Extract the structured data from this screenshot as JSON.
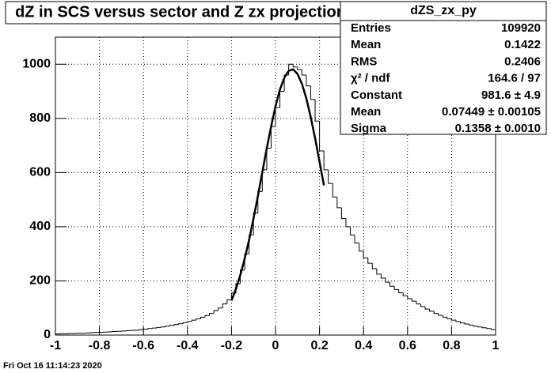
{
  "chart_data": {
    "type": "histogram",
    "title": "dZ in SCS versus sector and Z zx projection",
    "bins": [
      -1,
      -0.98,
      -0.96,
      -0.94,
      -0.92,
      -0.9,
      -0.88,
      -0.86,
      -0.84,
      -0.82,
      -0.8,
      -0.78,
      -0.76,
      -0.74,
      -0.72,
      -0.7,
      -0.68,
      -0.66,
      -0.64,
      -0.62,
      -0.6,
      -0.58,
      -0.56,
      -0.54,
      -0.52,
      -0.5,
      -0.48,
      -0.46,
      -0.44,
      -0.42,
      -0.4,
      -0.38,
      -0.36,
      -0.34,
      -0.32,
      -0.3,
      -0.28,
      -0.26,
      -0.24,
      -0.22,
      -0.2,
      -0.18,
      -0.16,
      -0.14,
      -0.12,
      -0.1,
      -0.08,
      -0.06,
      -0.04,
      -0.02,
      0,
      0.02,
      0.04,
      0.06,
      0.08,
      0.1,
      0.12,
      0.14,
      0.16,
      0.18,
      0.2,
      0.22,
      0.24,
      0.26,
      0.28,
      0.3,
      0.32,
      0.34,
      0.36,
      0.38,
      0.4,
      0.42,
      0.44,
      0.46,
      0.48,
      0.5,
      0.52,
      0.54,
      0.56,
      0.58,
      0.6,
      0.62,
      0.64,
      0.66,
      0.68,
      0.7,
      0.72,
      0.74,
      0.76,
      0.78,
      0.8,
      0.82,
      0.84,
      0.86,
      0.88,
      0.9,
      0.92,
      0.94,
      0.96,
      0.98,
      1
    ],
    "values": [
      4,
      5,
      5,
      6,
      6,
      7,
      7,
      8,
      9,
      10,
      10,
      11,
      12,
      13,
      14,
      15,
      16,
      17,
      18,
      20,
      22,
      24,
      26,
      28,
      30,
      33,
      36,
      39,
      42,
      46,
      50,
      55,
      60,
      66,
      72,
      80,
      90,
      100,
      115,
      130,
      155,
      190,
      240,
      300,
      370,
      450,
      530,
      610,
      690,
      770,
      840,
      900,
      960,
      1000,
      990,
      980,
      960,
      920,
      870,
      790,
      680,
      610,
      560,
      510,
      470,
      430,
      400,
      370,
      340,
      310,
      285,
      265,
      245,
      225,
      210,
      195,
      180,
      168,
      156,
      145,
      135,
      125,
      115,
      105,
      96,
      88,
      80,
      73,
      66,
      60,
      55,
      50,
      45,
      41,
      37,
      33,
      30,
      27,
      24,
      20
    ],
    "color": "#000000",
    "fit": {
      "color": "#000000",
      "x": [
        -0.2,
        -0.18,
        -0.16,
        -0.14,
        -0.12,
        -0.1,
        -0.08,
        -0.06,
        -0.04,
        -0.02,
        0,
        0.02,
        0.04,
        0.06,
        0.08,
        0.1,
        0.12,
        0.14,
        0.16,
        0.18,
        0.2,
        0.22
      ],
      "values": [
        127,
        170,
        221,
        282,
        351,
        430,
        513,
        601,
        688,
        770,
        845,
        906,
        950,
        976,
        981,
        964,
        928,
        874,
        805,
        726,
        640,
        553
      ]
    },
    "xlim": [
      -1,
      1
    ],
    "xticks": [
      -1,
      -0.8,
      -0.6,
      -0.4,
      -0.2,
      0,
      0.2,
      0.4,
      0.6,
      0.8,
      1
    ],
    "ylim": [
      0,
      1100
    ],
    "yticks": [
      0,
      200,
      400,
      600,
      800,
      1000
    ],
    "grid": true,
    "stats": {
      "title": "dZS_zx_py",
      "rows": [
        [
          "Entries",
          "109920"
        ],
        [
          "Mean",
          "0.1422"
        ],
        [
          "RMS",
          "0.2406"
        ],
        [
          "χ² / ndf",
          "164.6 / 97"
        ],
        [
          "Constant",
          "981.6 ± 4.9"
        ],
        [
          "Mean",
          "0.07449 ± 0.00105"
        ],
        [
          "Sigma",
          "0.1358 ± 0.0010"
        ]
      ]
    },
    "footer": "Fri Oct 16 11:14:23 2020"
  }
}
